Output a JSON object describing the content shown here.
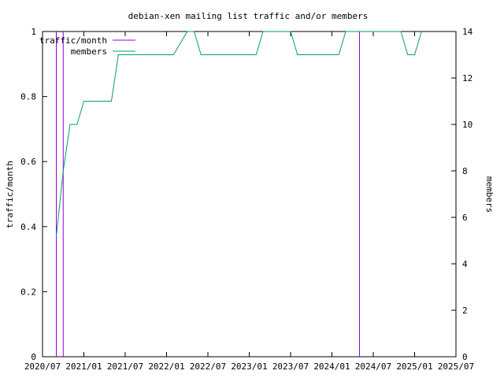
{
  "chart_data": {
    "type": "line",
    "title": "debian-xen mailing list traffic and/or members",
    "ylabel_left": "traffic/month",
    "ylabel_right": "members",
    "y_left_range": [
      0,
      1
    ],
    "y_left_ticks": [
      "0",
      "0.2",
      "0.4",
      "0.6",
      "0.8",
      "1"
    ],
    "y_right_range": [
      0,
      14
    ],
    "y_right_ticks": [
      "0",
      "2",
      "4",
      "6",
      "8",
      "10",
      "12",
      "14"
    ],
    "x_range": [
      "2020-07",
      "2025-07"
    ],
    "x_ticks": [
      "2020/07",
      "2021/01",
      "2021/07",
      "2022/01",
      "2022/07",
      "2023/01",
      "2023/07",
      "2024/01",
      "2024/07",
      "2025/01",
      "2025/07"
    ],
    "legend_position": "top-left",
    "grid": false,
    "series": [
      {
        "name": "traffic/month",
        "axis": "left",
        "color": "#9400d3",
        "style": "impulses",
        "points": [
          {
            "x": "2020-09-01",
            "y": 1
          },
          {
            "x": "2020-10-01",
            "y": 1
          },
          {
            "x": "2024-05-01",
            "y": 1
          }
        ]
      },
      {
        "name": "members",
        "axis": "right",
        "color": "#009e73",
        "style": "line",
        "points": [
          {
            "x": "2020-09-01",
            "y": 5.2
          },
          {
            "x": "2020-10-01",
            "y": 8
          },
          {
            "x": "2020-11-01",
            "y": 10
          },
          {
            "x": "2020-12-01",
            "y": 10
          },
          {
            "x": "2021-01-01",
            "y": 11
          },
          {
            "x": "2021-05-01",
            "y": 11
          },
          {
            "x": "2021-06-01",
            "y": 13
          },
          {
            "x": "2022-02-01",
            "y": 13
          },
          {
            "x": "2022-04-01",
            "y": 14
          },
          {
            "x": "2022-05-01",
            "y": 14
          },
          {
            "x": "2022-06-01",
            "y": 13
          },
          {
            "x": "2023-02-01",
            "y": 13
          },
          {
            "x": "2023-03-01",
            "y": 14
          },
          {
            "x": "2023-07-01",
            "y": 14
          },
          {
            "x": "2023-08-01",
            "y": 13
          },
          {
            "x": "2024-02-01",
            "y": 13
          },
          {
            "x": "2024-03-01",
            "y": 14
          },
          {
            "x": "2024-11-01",
            "y": 14
          },
          {
            "x": "2024-12-01",
            "y": 13
          },
          {
            "x": "2025-01-01",
            "y": 13
          },
          {
            "x": "2025-02-01",
            "y": 14
          }
        ]
      }
    ]
  }
}
